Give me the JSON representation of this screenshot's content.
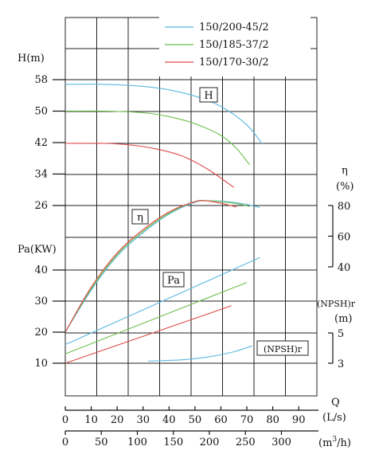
{
  "chart_data": {
    "type": "line",
    "legend": {
      "placement": "top-right",
      "entries": [
        {
          "label": "150/200-45/2",
          "color": "#5bb8e0"
        },
        {
          "label": "150/185-37/2",
          "color": "#6cbf4a"
        },
        {
          "label": "150/170-30/2",
          "color": "#e04848"
        }
      ]
    },
    "axes": {
      "x_flow_ls": {
        "name": "Q",
        "unit": "(L/s)",
        "ticks": [
          "0",
          "10",
          "20",
          "30",
          "40",
          "50",
          "60",
          "70",
          "80",
          "90"
        ],
        "range": [
          0,
          97
        ]
      },
      "x_flow_m3h": {
        "unit_prefix": "(m",
        "unit_sup": "3",
        "unit_suffix": "/h)",
        "ticks": [
          "0",
          "50",
          "100",
          "150",
          "200",
          "250",
          "300"
        ]
      },
      "y_head": {
        "label": "H(m)",
        "ticks": [
          "26",
          "34",
          "42",
          "50",
          "58"
        ],
        "range": [
          26,
          66
        ]
      },
      "y_power": {
        "label": "Pa(KW)",
        "ticks": [
          "10",
          "20",
          "30",
          "40"
        ],
        "range": [
          10,
          40
        ]
      },
      "y_eff": {
        "label_symbol": "η",
        "label_unit": "(%)",
        "ticks": [
          "40",
          "60",
          "80"
        ],
        "range": [
          40,
          80
        ]
      },
      "y_npsh": {
        "label": "(NPSH)r",
        "label_unit": "(m)",
        "ticks": [
          "3",
          "5"
        ],
        "range": [
          3,
          5
        ]
      }
    },
    "labels": {
      "head": "H",
      "efficiency": "η",
      "power": "Pa",
      "npsh": "(NPSH)r"
    },
    "series": {
      "head": [
        {
          "name": "150/200-45/2",
          "x": [
            0,
            15,
            30,
            40,
            50,
            60,
            70,
            76
          ],
          "y": [
            56.8,
            56.8,
            56.3,
            55.4,
            53.8,
            51.2,
            46.5,
            41.6
          ]
        },
        {
          "name": "150/185-37/2",
          "x": [
            0,
            15,
            30,
            40,
            50,
            60,
            66,
            71
          ],
          "y": [
            50,
            50,
            49.6,
            48.6,
            46.8,
            43.8,
            40.5,
            36.4
          ]
        },
        {
          "name": "150/170-30/2",
          "x": [
            0,
            15,
            25,
            35,
            45,
            55,
            65
          ],
          "y": [
            41.8,
            41.8,
            41.4,
            40.4,
            38.6,
            35.2,
            30.6
          ]
        }
      ],
      "efficiency": [
        {
          "name": "150/200-45/2",
          "x": [
            0,
            10,
            20,
            30,
            40,
            50,
            55,
            65,
            75
          ],
          "y": [
            20,
            33.5,
            44.5,
            52,
            58,
            61.8,
            62.3,
            61.8,
            60.2
          ]
        },
        {
          "name": "150/185-37/2",
          "x": [
            0,
            10,
            20,
            30,
            40,
            50,
            55,
            65,
            71
          ],
          "y": [
            20,
            34,
            45,
            52.5,
            58.3,
            62,
            62.3,
            61.5,
            60.5
          ]
        },
        {
          "name": "150/170-30/2",
          "x": [
            0,
            10,
            20,
            30,
            40,
            50,
            55,
            60,
            66
          ],
          "y": [
            20,
            34.5,
            45.5,
            53,
            58.7,
            62,
            62.2,
            61.5,
            60.3
          ]
        }
      ],
      "power": [
        {
          "name": "150/200-45/2",
          "x": [
            0,
            75
          ],
          "y": [
            16,
            44
          ]
        },
        {
          "name": "150/185-37/2",
          "x": [
            0,
            70
          ],
          "y": [
            13,
            36
          ]
        },
        {
          "name": "150/170-30/2",
          "x": [
            0,
            64
          ],
          "y": [
            10,
            28.5
          ]
        }
      ],
      "npsh": [
        {
          "name": "150/200-45/2",
          "x": [
            32,
            45,
            55,
            65,
            72
          ],
          "y": [
            10.7,
            11.1,
            12,
            13.7,
            15.6
          ]
        }
      ]
    },
    "ylim_head": [
      26,
      66
    ],
    "ylim_power": [
      10,
      40
    ],
    "xlim": [
      0,
      97
    ],
    "grid": true
  }
}
